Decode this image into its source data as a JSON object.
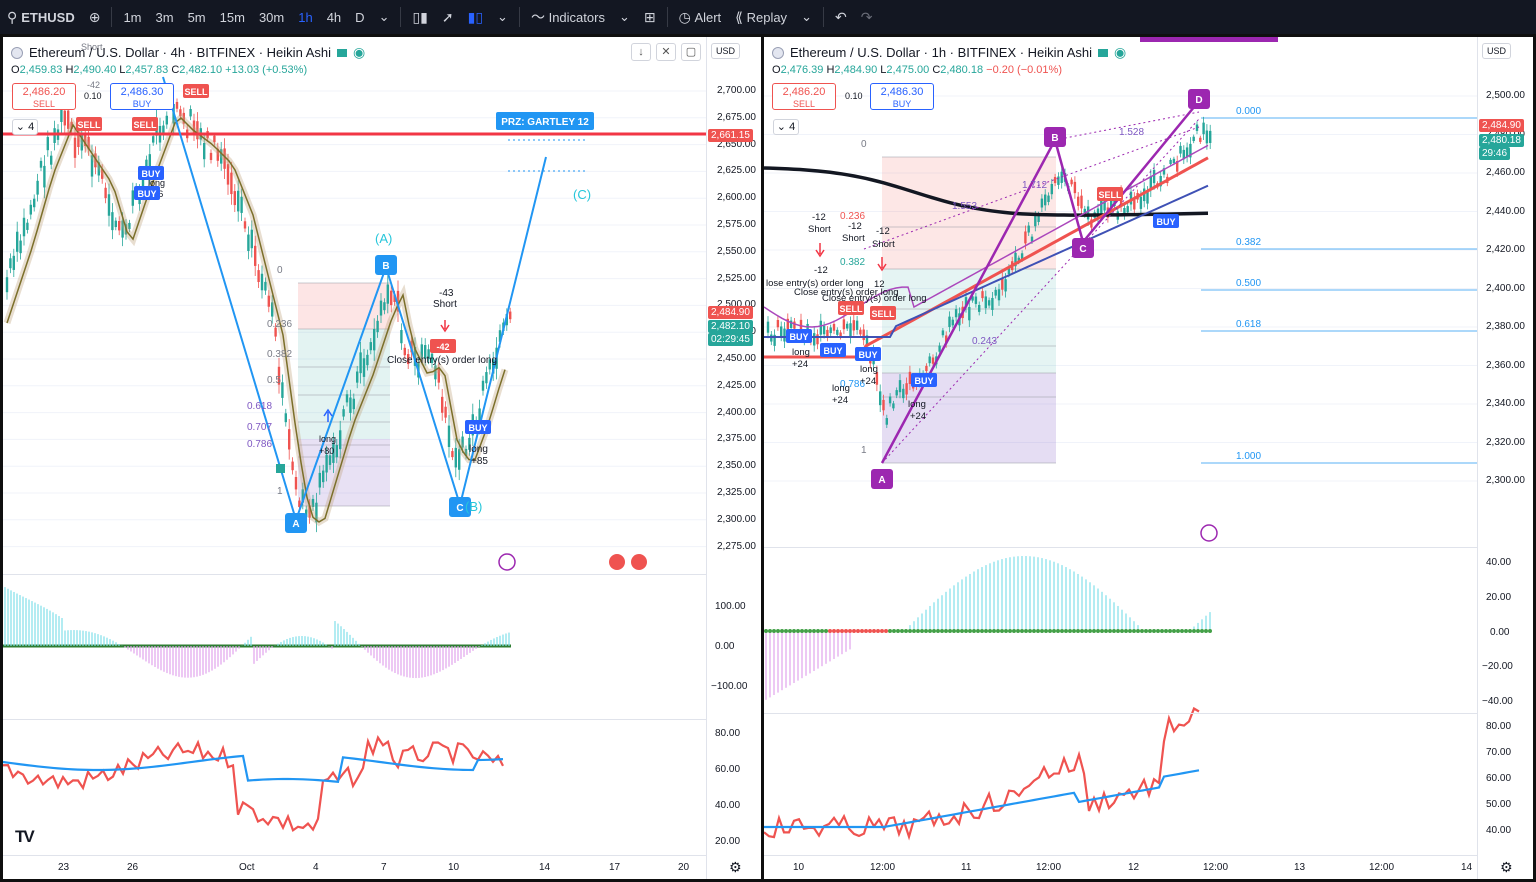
{
  "toolbar": {
    "symbol": "ETHUSD",
    "intervals": [
      "1m",
      "3m",
      "5m",
      "15m",
      "30m",
      "1h",
      "4h",
      "D"
    ],
    "active_interval": "1h",
    "indicators_label": "Indicators",
    "alert_label": "Alert",
    "replay_label": "Replay"
  },
  "left": {
    "title": "Ethereum / U.S. Dollar · 4h · BITFINEX · Heikin Ashi",
    "ohlc": {
      "o": "2,459.83",
      "h": "2,490.40",
      "l": "2,457.83",
      "c": "2,482.10",
      "chg": "+13.03 (+0.53%)"
    },
    "sell_price": "2,486.20",
    "sell_label": "SELL",
    "buy_price": "2,486.30",
    "buy_label": "BUY",
    "spread": "0.10",
    "layers": "4",
    "currency": "USD",
    "price_labels": [
      "2,700.00",
      "2,675.00",
      "2,650.00",
      "2,625.00",
      "2,600.00",
      "2,575.00",
      "2,550.00",
      "2,525.00",
      "2,500.00",
      "2,475.00",
      "2,450.00",
      "2,425.00",
      "2,400.00",
      "2,375.00",
      "2,350.00",
      "2,325.00",
      "2,300.00",
      "2,275.00"
    ],
    "red_line_price": "2,661.15",
    "last_price": "2,484.90",
    "close_price": "2,482.10",
    "countdown": "02:29:45",
    "prz_label": "PRZ: GARTLEY 12",
    "wave_labels": {
      "a_paren": "(A)",
      "b_paren": "(B)",
      "c_paren": "(C)"
    },
    "point_labels": {
      "a": "A",
      "b": "B",
      "c": "C"
    },
    "fib_labels": [
      "0",
      "0.236",
      "0.382",
      "0.5",
      "0.618",
      "0.707",
      "0.786",
      "1"
    ],
    "trade_labels": {
      "short_top": "Short",
      "minus42": "-42",
      "long_76": "long",
      "plus76": "+76",
      "long_80": "long",
      "plus80": "+80",
      "short_mid": "Short",
      "minus43": "-43",
      "close_entry": "Close entry(s) order long",
      "long_85": "long",
      "plus85": "+85",
      "neg42b": "-42"
    },
    "signals": {
      "buy": "BUY",
      "sell": "SELL"
    },
    "macd_labels": [
      "100.00",
      "0.00",
      "−100.00"
    ],
    "rsi_labels": [
      "80.00",
      "60.00",
      "40.00",
      "20.00"
    ],
    "time_labels": [
      "23",
      "26",
      "Oct",
      "4",
      "7",
      "10",
      "14",
      "17",
      "20"
    ]
  },
  "right": {
    "title": "Ethereum / U.S. Dollar · 1h · BITFINEX · Heikin Ashi",
    "ohlc": {
      "o": "2,476.39",
      "h": "2,484.90",
      "l": "2,475.00",
      "c": "2,480.18",
      "chg": "−0.20 (−0.01%)"
    },
    "sell_price": "2,486.20",
    "sell_label": "SELL",
    "buy_price": "2,486.30",
    "buy_label": "BUY",
    "spread": "0.10",
    "layers": "4",
    "currency": "USD",
    "price_labels": [
      "2,500.00",
      "2,480.00",
      "2,460.00",
      "2,440.00",
      "2,420.00",
      "2,400.00",
      "2,380.00",
      "2,360.00",
      "2,340.00",
      "2,320.00",
      "2,300.00"
    ],
    "last_price": "2,484.90",
    "close_price": "2,480.18",
    "countdown": "29:46",
    "fib_levels": [
      "0.000",
      "0.382",
      "0.500",
      "0.618",
      "1.000"
    ],
    "point_labels": {
      "a": "A",
      "b": "B",
      "c": "C",
      "d": "D"
    },
    "ratios": [
      "1.553",
      "1.528",
      "1.712",
      "0.243"
    ],
    "box_labels": [
      "0",
      "0.236",
      "0.382",
      "0.786",
      "1"
    ],
    "trade_labels": {
      "m12a": "-12",
      "short_a": "Short",
      "m12b": "-12",
      "short_b": "Short",
      "m12c": "-12",
      "short_c": "Short",
      "m12d": "-12",
      "m12e": "12",
      "close1": "lose entry(s) order long",
      "close2": "Close entry(s) order long",
      "close3": "Close entry(s) order long",
      "long1": "long",
      "p24a": "+24",
      "long2": "long",
      "p24b": "+24",
      "long3": "long",
      "p24c": "+24",
      "long4": "long",
      "p24d": "+24"
    },
    "signals": {
      "buy": "BUY",
      "sell": "SELL"
    },
    "macd_labels": [
      "40.00",
      "20.00",
      "0.00",
      "−20.00",
      "−40.00"
    ],
    "rsi_labels": [
      "80.00",
      "70.00",
      "60.00",
      "50.00",
      "40.00"
    ],
    "time_labels": [
      "10",
      "12:00",
      "11",
      "12:00",
      "12",
      "12:00",
      "13",
      "12:00",
      "14"
    ]
  },
  "colors": {
    "up": "#26a69a",
    "down": "#ef5350",
    "accent": "#2962ff",
    "pattern": "#9c27b0",
    "wave": "#2196f3"
  }
}
